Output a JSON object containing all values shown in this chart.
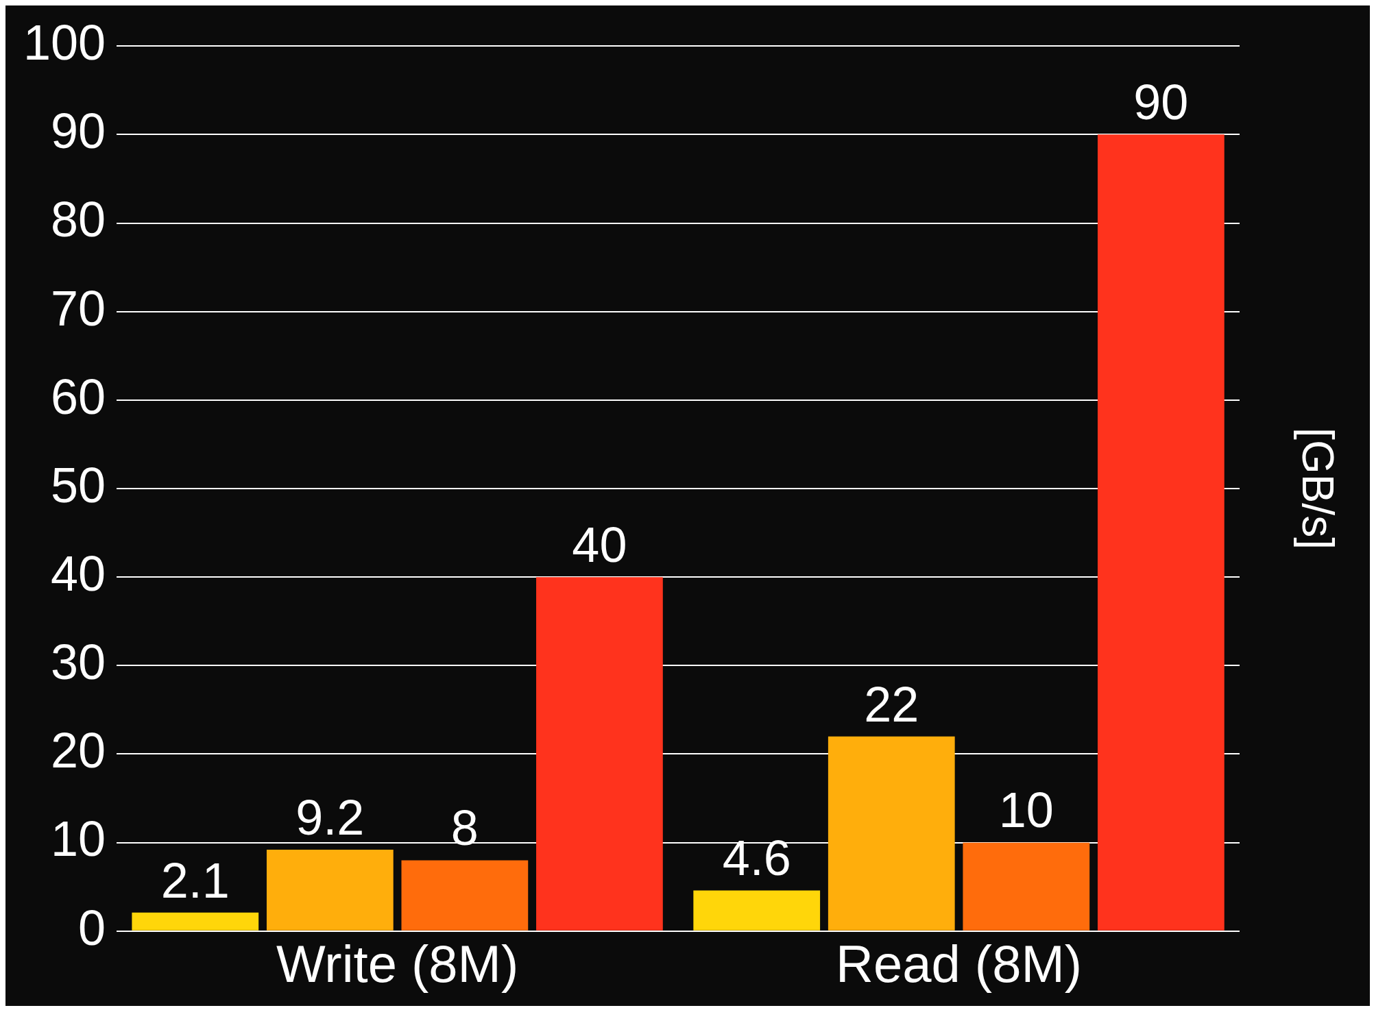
{
  "chart_data": {
    "type": "bar",
    "ylabel": "[GB/s]",
    "categories": [
      "Write (8M)",
      "Read (8M)"
    ],
    "series": [
      {
        "color": "#ffd60a",
        "values": [
          2.1,
          4.6
        ]
      },
      {
        "color": "#ffae0c",
        "values": [
          9.2,
          22
        ]
      },
      {
        "color": "#ff6c0c",
        "values": [
          8,
          10
        ]
      },
      {
        "color": "#ff331d",
        "values": [
          40,
          90
        ]
      }
    ],
    "ylim": [
      0,
      100
    ],
    "yticks": [
      0,
      10,
      20,
      30,
      40,
      50,
      60,
      70,
      80,
      90,
      100
    ],
    "grid": "y",
    "legend": false,
    "data_labels": true
  }
}
